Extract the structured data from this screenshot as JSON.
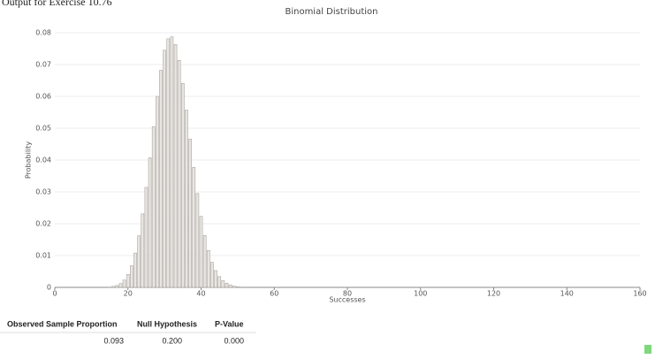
{
  "caption": "Output for Exercise 10.76",
  "chart_data": {
    "type": "bar",
    "title": "Binomial Distribution",
    "x_label": "Successes",
    "y_label": "Probability",
    "x": [
      15,
      16,
      17,
      18,
      19,
      20,
      21,
      22,
      23,
      24,
      25,
      26,
      27,
      28,
      29,
      30,
      31,
      32,
      33,
      34,
      35,
      36,
      37,
      38,
      39,
      40,
      41,
      42,
      43,
      44,
      45,
      46,
      47,
      48,
      49,
      50
    ],
    "values": [
      0.0001,
      0.0003,
      0.0006,
      0.0012,
      0.0023,
      0.0041,
      0.0068,
      0.0108,
      0.0162,
      0.0231,
      0.0314,
      0.0407,
      0.0505,
      0.06,
      0.0682,
      0.0745,
      0.0781,
      0.0787,
      0.0763,
      0.0713,
      0.0641,
      0.0557,
      0.0466,
      0.0377,
      0.0295,
      0.0223,
      0.0163,
      0.0116,
      0.0079,
      0.0053,
      0.0034,
      0.0021,
      0.0013,
      0.0008,
      0.0004,
      0.0002
    ],
    "color": "#e9e5e1",
    "xlim": [
      0,
      160
    ],
    "xticks": [
      0,
      20,
      40,
      60,
      80,
      100,
      120,
      140,
      160
    ],
    "ylim": [
      0,
      0.08
    ],
    "yticks": [
      0,
      0.01,
      0.02,
      0.03,
      0.04,
      0.05,
      0.06,
      0.07,
      0.08
    ],
    "grid": true
  },
  "table": {
    "columns": [
      "Observed Sample Proportion",
      "Null Hypothesis",
      "P-Value"
    ],
    "rows": [
      [
        "0.093",
        "0.200",
        "0.000"
      ]
    ]
  }
}
